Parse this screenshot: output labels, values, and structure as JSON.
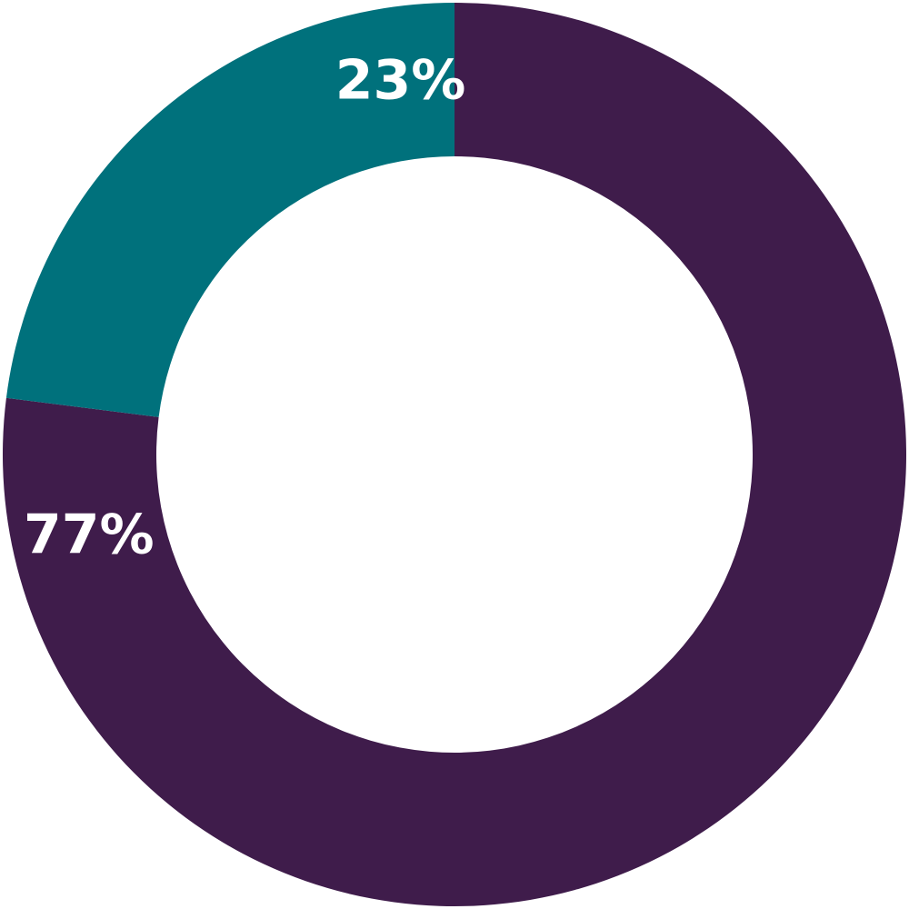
{
  "chart_data": {
    "type": "pie",
    "variant": "donut",
    "start": "top",
    "direction": "clockwise",
    "categories": [
      "",
      ""
    ],
    "series": [
      {
        "values": [
          77,
          23
        ]
      }
    ],
    "colors": [
      "#3f1c4b",
      "#00717c"
    ],
    "labels": [
      "77%",
      "23%"
    ],
    "title": "",
    "legend": "none"
  }
}
